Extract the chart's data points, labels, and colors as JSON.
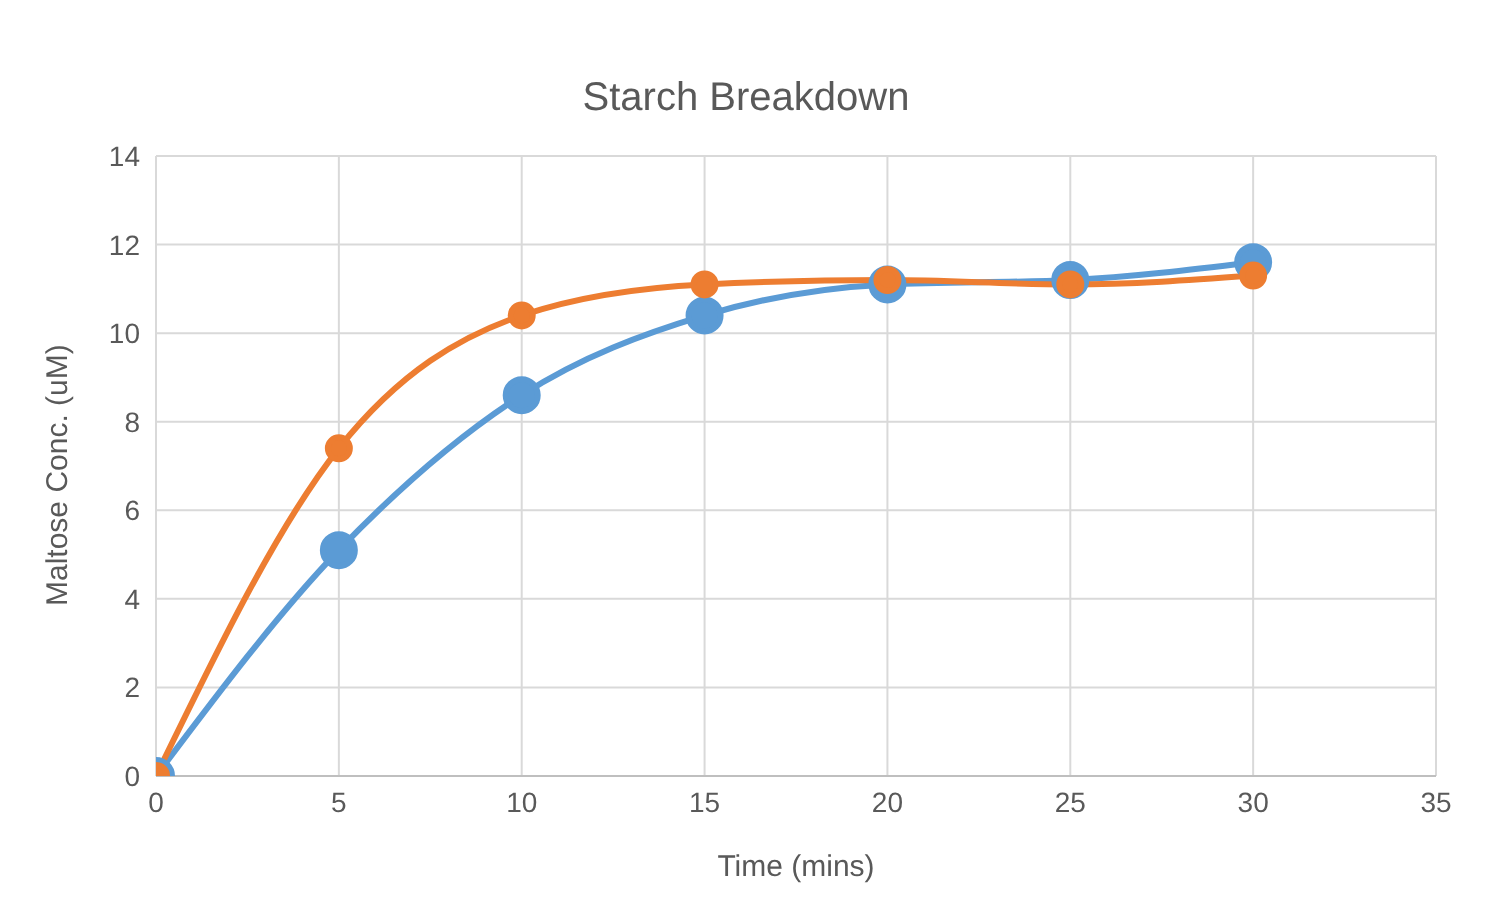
{
  "chart_data": {
    "type": "line",
    "title": "Starch Breakdown",
    "xlabel": "Time (mins)",
    "ylabel": "Maltose Conc. (uM)",
    "x": [
      0,
      5,
      10,
      15,
      20,
      25,
      30
    ],
    "series": [
      {
        "color": "#5b9bd5",
        "values": [
          0,
          5.1,
          8.6,
          10.4,
          11.1,
          11.2,
          11.6
        ]
      },
      {
        "color": "#ed7d31",
        "values": [
          0,
          7.4,
          10.4,
          11.1,
          11.2,
          11.1,
          11.3
        ]
      }
    ],
    "xlim": [
      0,
      35
    ],
    "xticks": [
      0,
      5,
      10,
      15,
      20,
      25,
      30,
      35
    ],
    "ylim": [
      0,
      14
    ],
    "yticks": [
      0,
      2,
      4,
      6,
      8,
      10,
      12,
      14
    ],
    "grid": true,
    "marker": "circle",
    "line_style": "solid"
  }
}
